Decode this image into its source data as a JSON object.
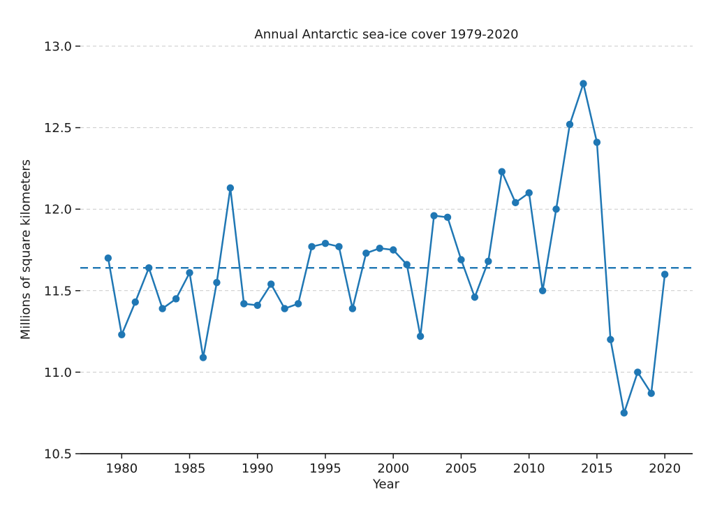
{
  "chart_data": {
    "type": "line",
    "title": "Annual Antarctic sea-ice cover 1979-2020",
    "xlabel": "Year",
    "ylabel": "Millions of square kilometers",
    "x": [
      1979,
      1980,
      1981,
      1982,
      1983,
      1984,
      1985,
      1986,
      1987,
      1988,
      1989,
      1990,
      1991,
      1992,
      1993,
      1994,
      1995,
      1996,
      1997,
      1998,
      1999,
      2000,
      2001,
      2002,
      2003,
      2004,
      2005,
      2006,
      2007,
      2008,
      2009,
      2010,
      2011,
      2012,
      2013,
      2014,
      2015,
      2016,
      2017,
      2018,
      2019,
      2020
    ],
    "values": [
      11.7,
      11.23,
      11.43,
      11.64,
      11.39,
      11.45,
      11.61,
      11.09,
      11.55,
      12.13,
      11.42,
      11.41,
      11.54,
      11.39,
      11.42,
      11.77,
      11.79,
      11.77,
      11.39,
      11.73,
      11.76,
      11.75,
      11.66,
      11.22,
      11.96,
      11.95,
      11.69,
      11.46,
      11.68,
      12.23,
      12.04,
      12.1,
      11.5,
      12.0,
      12.52,
      12.77,
      12.41,
      11.2,
      10.75,
      11.0,
      10.87,
      11.6
    ],
    "mean_line": {
      "value": 11.64,
      "style": "dashed"
    },
    "ylim": [
      10.5,
      13.0
    ],
    "xlim": [
      1976.95,
      2022.05
    ],
    "yticks": [
      10.5,
      11.0,
      11.5,
      12.0,
      12.5,
      13.0
    ],
    "ytick_labels": [
      "10.5",
      "11.0",
      "11.5",
      "12.0",
      "12.5",
      "13.0"
    ],
    "xticks": [
      1980,
      1985,
      1990,
      1995,
      2000,
      2005,
      2010,
      2015,
      2020
    ],
    "grid": {
      "axis": "y",
      "style": "dashed"
    },
    "legend": "none",
    "marker": "circle",
    "colors": {
      "line": "#1f77b4",
      "grid": "#c9c9c9",
      "text": "#1a1a1a",
      "axis": "#1a1a1a",
      "background": "#ffffff"
    }
  }
}
